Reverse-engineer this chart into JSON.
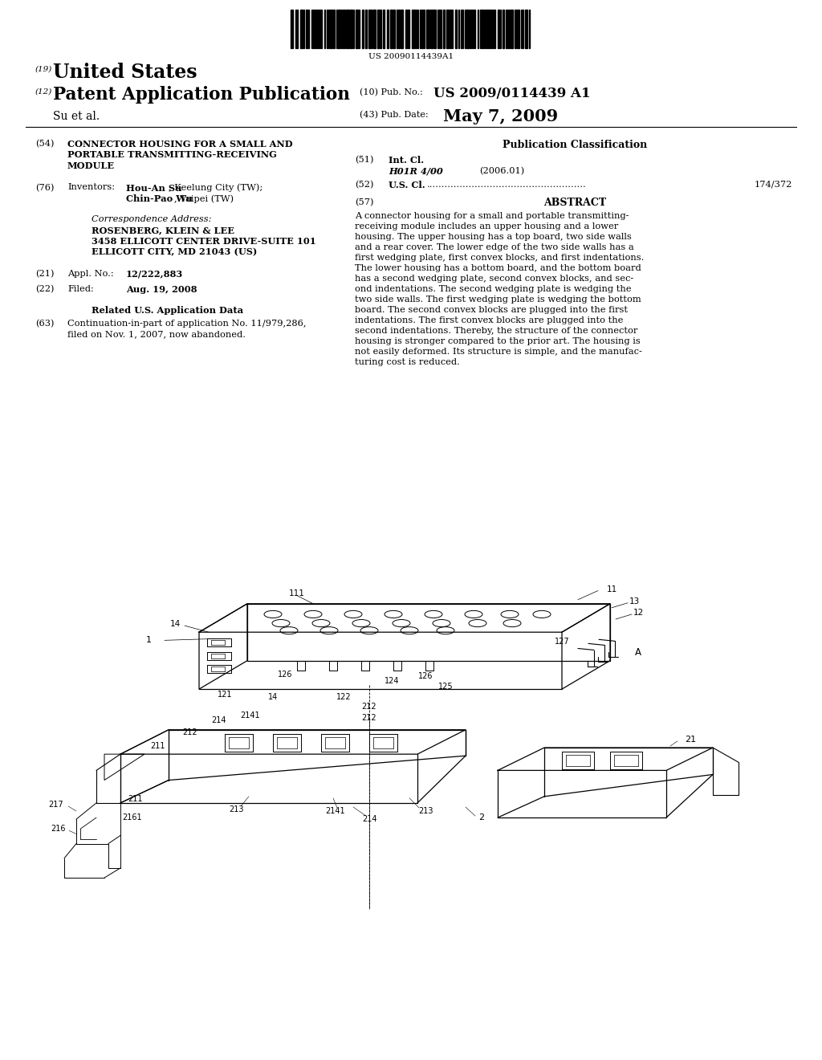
{
  "bg_color": "#ffffff",
  "barcode_text": "US 20090114439A1",
  "pub_number": "US 2009/0114439 A1",
  "pub_date_label": "May 7, 2009",
  "country": "United States",
  "app_type": "Patent Application Publication",
  "field19": "(19)",
  "field12": "(12)",
  "field10": "(10) Pub. No.:",
  "field43": "(43) Pub. Date:",
  "applicant": "Su et al.",
  "field54_label": "(54)",
  "field54_title": "CONNECTOR HOUSING FOR A SMALL AND\nPORTABLE TRANSMITTING-RECEIVING\nMODULE",
  "field76_label": "(76)",
  "field76_title": "Inventors:",
  "inventors_bold": "Hou-An Su",
  "inventors_rest1": ", Keelung City (TW);",
  "inventors_bold2": "Chin-Pao Wu",
  "inventors_rest2": ", Taipei (TW)",
  "correspondence_label": "Correspondence Address:",
  "corr_line1": "ROSENBERG, KLEIN & LEE",
  "corr_line2": "3458 ELLICOTT CENTER DRIVE-SUITE 101",
  "corr_line3": "ELLICOTT CITY, MD 21043 (US)",
  "field21_label": "(21)",
  "field21_title": "Appl. No.:",
  "appl_no": "12/222,883",
  "field22_label": "(22)",
  "field22_title": "Filed:",
  "filed_date": "Aug. 19, 2008",
  "related_data_title": "Related U.S. Application Data",
  "field63_label": "(63)",
  "field63_text_line1": "Continuation-in-part of application No. 11/979,286,",
  "field63_text_line2": "filed on Nov. 1, 2007, now abandoned.",
  "pub_class_title": "Publication Classification",
  "field51_label": "(51)",
  "field51_title": "Int. Cl.",
  "int_cl_code": "H01R 4/00",
  "int_cl_year": "(2006.01)",
  "field52_label": "(52)",
  "field52_title": "U.S. Cl.",
  "us_cl_dots": ".....................................................",
  "us_cl_value": "174/372",
  "field57_label": "(57)",
  "abstract_title": "ABSTRACT",
  "abstract_lines": [
    "A connector housing for a small and portable transmitting-",
    "receiving module includes an upper housing and a lower",
    "housing. The upper housing has a top board, two side walls",
    "and a rear cover. The lower edge of the two side walls has a",
    "first wedging plate, first convex blocks, and first indentations.",
    "The lower housing has a bottom board, and the bottom board",
    "has a second wedging plate, second convex blocks, and sec-",
    "ond indentations. The second wedging plate is wedging the",
    "two side walls. The first wedging plate is wedging the bottom",
    "board. The second convex blocks are plugged into the first",
    "indentations. The first convex blocks are plugged into the",
    "second indentations. Thereby, the structure of the connector",
    "housing is stronger compared to the prior art. The housing is",
    "not easily deformed. Its structure is simple, and the manufac-",
    "turing cost is reduced."
  ]
}
